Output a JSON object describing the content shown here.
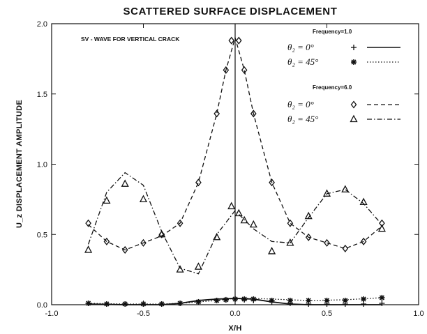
{
  "chart_data": {
    "type": "line",
    "title": "SCATTERED SURFACE DISPLACEMENT",
    "xlabel": "X/H",
    "ylabel": "U_z DISPLACEMENT  AMPLITUDE",
    "annotation": "SV - WAVE FOR VERTICAL CRACK",
    "xlim": [
      -1.0,
      1.0
    ],
    "ylim": [
      0.0,
      2.0
    ],
    "x_ticks": [
      "-1.0",
      "-0.5",
      "0.0",
      "0.5",
      "1.0"
    ],
    "y_ticks": [
      "0.0",
      "0.5",
      "1.0",
      "1.5",
      "2.0"
    ],
    "grid": false,
    "legend_position": "top-right",
    "legend_groups": [
      {
        "heading": "Frequency=1.0",
        "series": [
          0,
          1
        ]
      },
      {
        "heading": "Frequency=6.0",
        "series": [
          2,
          3
        ]
      }
    ],
    "series": [
      {
        "legend_label": "θ₂ = 0°",
        "marker": "plus",
        "line": "solid",
        "x": [
          -0.8,
          -0.7,
          -0.6,
          -0.5,
          -0.4,
          -0.3,
          -0.2,
          -0.1,
          -0.05,
          0.0,
          0.05,
          0.1,
          0.2,
          0.3,
          0.4,
          0.5,
          0.6,
          0.7,
          0.8
        ],
        "y": [
          0.01,
          0.005,
          0.005,
          0.005,
          0.005,
          0.01,
          0.02,
          0.03,
          0.035,
          0.04,
          0.035,
          0.03,
          0.02,
          0.01,
          0.005,
          0.005,
          0.005,
          0.005,
          0.01
        ],
        "curve_x": [
          -0.8,
          -0.6,
          -0.4,
          -0.3,
          -0.2,
          -0.1,
          0.0,
          0.1,
          0.2,
          0.3,
          0.4,
          0.6,
          0.8
        ],
        "curve_y": [
          0.005,
          0.0,
          0.0,
          0.01,
          0.03,
          0.04,
          0.045,
          0.04,
          0.02,
          0.005,
          0.0,
          0.0,
          0.0
        ]
      },
      {
        "legend_label": "θ₂ = 45°",
        "marker": "star",
        "line": "dotted",
        "x": [
          -0.8,
          -0.7,
          -0.6,
          -0.5,
          -0.4,
          -0.3,
          -0.2,
          -0.1,
          -0.05,
          0.0,
          0.05,
          0.1,
          0.2,
          0.3,
          0.4,
          0.5,
          0.6,
          0.7,
          0.8
        ],
        "y": [
          0.01,
          0.005,
          0.005,
          0.005,
          0.005,
          0.01,
          0.02,
          0.03,
          0.035,
          0.04,
          0.04,
          0.04,
          0.03,
          0.03,
          0.03,
          0.03,
          0.03,
          0.04,
          0.05
        ],
        "curve_x": [
          -0.8,
          -0.6,
          -0.4,
          -0.3,
          -0.2,
          -0.1,
          0.0,
          0.1,
          0.2,
          0.3,
          0.4,
          0.6,
          0.8
        ],
        "curve_y": [
          0.01,
          0.005,
          0.005,
          0.01,
          0.02,
          0.03,
          0.045,
          0.045,
          0.04,
          0.035,
          0.03,
          0.035,
          0.05
        ]
      },
      {
        "legend_label": "θ₂ = 0°",
        "marker": "diamond",
        "line": "dashed",
        "x": [
          -0.8,
          -0.7,
          -0.6,
          -0.5,
          -0.4,
          -0.3,
          -0.2,
          -0.1,
          -0.05,
          -0.02,
          0.02,
          0.05,
          0.1,
          0.2,
          0.3,
          0.4,
          0.5,
          0.6,
          0.7,
          0.8
        ],
        "y": [
          0.58,
          0.45,
          0.39,
          0.44,
          0.5,
          0.58,
          0.87,
          1.36,
          1.67,
          1.88,
          1.88,
          1.67,
          1.36,
          0.87,
          0.58,
          0.48,
          0.44,
          0.4,
          0.45,
          0.58
        ],
        "curve_x": [
          -0.8,
          -0.7,
          -0.6,
          -0.5,
          -0.4,
          -0.3,
          -0.2,
          -0.1,
          -0.05,
          0.0,
          0.05,
          0.1,
          0.2,
          0.3,
          0.4,
          0.5,
          0.6,
          0.7,
          0.8
        ],
        "curve_y": [
          0.57,
          0.45,
          0.39,
          0.44,
          0.49,
          0.58,
          0.87,
          1.36,
          1.67,
          1.9,
          1.67,
          1.36,
          0.87,
          0.58,
          0.48,
          0.44,
          0.4,
          0.45,
          0.56
        ]
      },
      {
        "legend_label": "θ₂ = 45°",
        "marker": "triangle",
        "line": "dashdot",
        "x": [
          -0.8,
          -0.7,
          -0.6,
          -0.5,
          -0.4,
          -0.3,
          -0.2,
          -0.1,
          -0.02,
          0.02,
          0.05,
          0.1,
          0.2,
          0.3,
          0.4,
          0.5,
          0.6,
          0.7,
          0.8
        ],
        "y": [
          0.39,
          0.74,
          0.86,
          0.75,
          0.5,
          0.25,
          0.27,
          0.48,
          0.7,
          0.65,
          0.6,
          0.57,
          0.38,
          0.44,
          0.63,
          0.79,
          0.82,
          0.73,
          0.54
        ],
        "curve_x": [
          -0.8,
          -0.7,
          -0.6,
          -0.5,
          -0.4,
          -0.3,
          -0.2,
          -0.1,
          0.0,
          0.1,
          0.2,
          0.3,
          0.4,
          0.5,
          0.6,
          0.7,
          0.8
        ],
        "curve_y": [
          0.43,
          0.8,
          0.94,
          0.85,
          0.52,
          0.26,
          0.22,
          0.5,
          0.67,
          0.54,
          0.45,
          0.44,
          0.62,
          0.79,
          0.82,
          0.72,
          0.57
        ]
      }
    ],
    "vertical_reference_line_x": 0.0
  }
}
